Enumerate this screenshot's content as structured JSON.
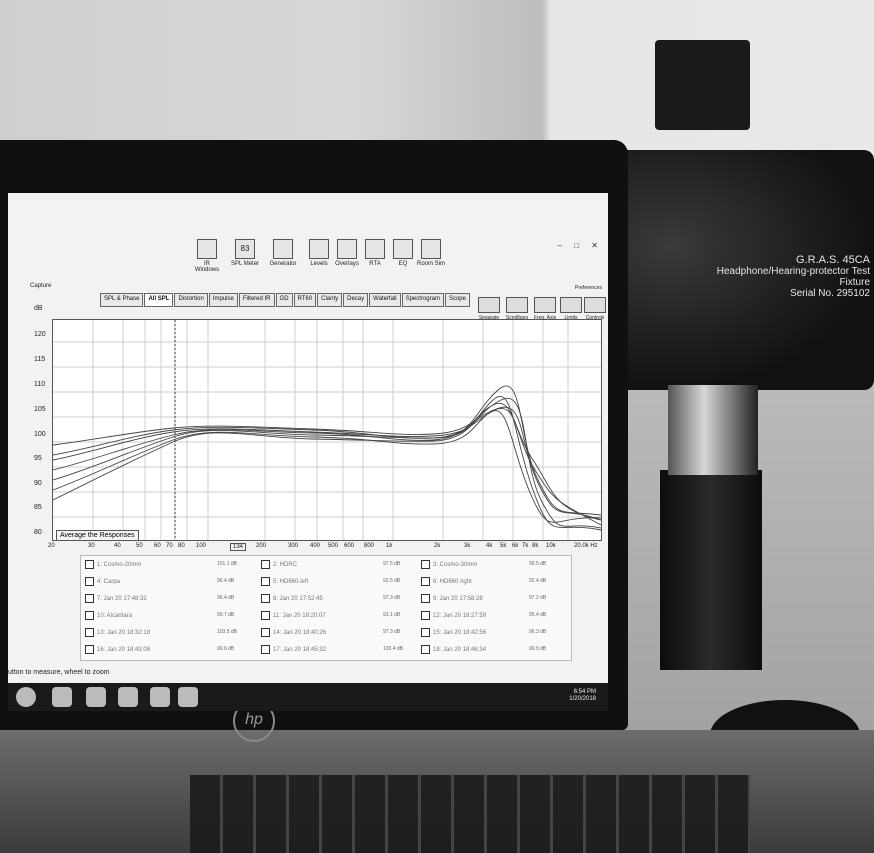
{
  "app": {
    "window_controls": [
      "–",
      "□",
      "✕"
    ],
    "preferences_label": "Preferences",
    "capture_label": "Capture",
    "db_label": "dB"
  },
  "toolbar": {
    "items": [
      {
        "label": "IR Windows",
        "icon": "ir-windows-icon"
      },
      {
        "label": "SPL Meter",
        "icon": "spl-meter-icon",
        "value": "83"
      },
      {
        "label": "Generator",
        "icon": "generator-icon"
      },
      {
        "label": "Levels",
        "icon": "levels-icon"
      },
      {
        "label": "Overlays",
        "icon": "overlays-icon"
      },
      {
        "label": "RTA",
        "icon": "rta-icon"
      },
      {
        "label": "EQ",
        "icon": "eq-icon"
      },
      {
        "label": "Room Sim",
        "icon": "room-sim-icon"
      }
    ]
  },
  "tabs": [
    "SPL & Phase",
    "All SPL",
    "Distortion",
    "Impulse",
    "Filtered IR",
    "GD",
    "RT60",
    "Clarity",
    "Decay",
    "Waterfall",
    "Spectrogram",
    "Scope"
  ],
  "active_tab": "All SPL",
  "right_tools": [
    "Separate",
    "Scrollbars",
    "Freq. Axis",
    "Limits",
    "Controls"
  ],
  "graph": {
    "average_button": "Average the Responses",
    "y_ticks": [
      "120",
      "115",
      "110",
      "105",
      "100",
      "95",
      "90",
      "85",
      "80"
    ],
    "x_ticks": [
      "20",
      "30",
      "40",
      "50",
      "60",
      "70",
      "80",
      "100",
      "200",
      "300",
      "400",
      "500",
      "600",
      "800",
      "1k",
      "2k",
      "3k",
      "4k",
      "5k",
      "6k",
      "7k",
      "8k",
      "10k",
      "20.0k Hz"
    ],
    "cursor_value": "134"
  },
  "legend": {
    "rows": [
      [
        "1: Cosmo-20mm",
        "2: HDRC",
        "3: Cosmo-30mm"
      ],
      [
        "4: Carpa",
        "5: HD660-left",
        "6: HD660 right"
      ],
      [
        "7: Jan 20 17:48:32",
        "8: Jan 20 17:52:45",
        "9: Jan 20 17:58:28"
      ],
      [
        "10: Alcantara",
        "11: Jan 20 18:20:07",
        "12: Jan 20 18:27:59"
      ],
      [
        "13: Jan 20 18:32:18",
        "14: Jan 20 18:40:26",
        "15: Jan 20 18:42:56"
      ],
      [
        "16: Jan 20 18:43:08",
        "17: Jan 20 18:45:32",
        "18: Jan 20 18:46:34"
      ]
    ],
    "values": [
      [
        "101.1 dB",
        "97.5 dB",
        "90.5 dB"
      ],
      [
        "96.4 dB",
        "93.5 dB",
        "92.4 dB"
      ],
      [
        "96.4 dB",
        "97.3 dB",
        "97.2 dB"
      ],
      [
        "99.7 dB",
        "93.1 dB",
        "95.4 dB"
      ],
      [
        "103.5 dB",
        "97.3 dB",
        "96.3 dB"
      ],
      [
        "99.6 dB",
        "100.4 dB",
        "99.9 dB"
      ]
    ]
  },
  "status_bar": "utton to measure, wheel to zoom",
  "clock": {
    "time": "6:54 PM",
    "date": "1/20/2018"
  },
  "fixture": {
    "line1": "G.R.A.S. 45CA",
    "line2": "Headphone/Hearing-protector Test Fixture",
    "line3": "Serial No. 295102"
  },
  "brand": "hp"
}
